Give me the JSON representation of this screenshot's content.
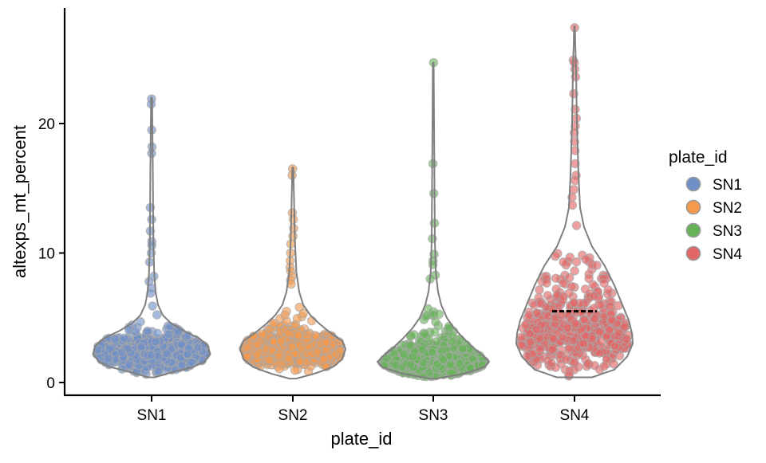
{
  "chart_data": {
    "type": "violin",
    "xlabel": "plate_id",
    "ylabel": "altexps_mt_percent",
    "categories": [
      "SN1",
      "SN2",
      "SN3",
      "SN4"
    ],
    "ylim": [
      -1,
      28
    ],
    "yticks": [
      0,
      10,
      20
    ],
    "grid": false,
    "legend": {
      "title": "plate_id",
      "position": "right",
      "entries": [
        "SN1",
        "SN2",
        "SN3",
        "SN4"
      ]
    },
    "colors": {
      "SN1": "#6f8fc8",
      "SN2": "#f39a4d",
      "SN3": "#66b357",
      "SN4": "#e36666"
    },
    "series": [
      {
        "name": "SN1",
        "min": 0.4,
        "max": 22.0,
        "median": 2.4,
        "mode": 2.2,
        "outliers": [
          21.9,
          21.5,
          19.5,
          18.2,
          17.7,
          13.5,
          12.6,
          11.7,
          10.9,
          10.6,
          10.0,
          9.3,
          8.2,
          7.8,
          7.3,
          6.9
        ]
      },
      {
        "name": "SN2",
        "min": 0.3,
        "max": 16.6,
        "median": 2.6,
        "mode": 2.6,
        "outliers": [
          16.5,
          16.0,
          13.1,
          12.6,
          11.9,
          11.3,
          10.7,
          10.0,
          9.4,
          8.9,
          8.6,
          8.2,
          7.9,
          7.6
        ]
      },
      {
        "name": "SN3",
        "min": 0.3,
        "max": 24.7,
        "median": 2.1,
        "mode": 1.6,
        "outliers": [
          24.7,
          16.9,
          14.6,
          12.3,
          11.1,
          9.9,
          9.4,
          9.1,
          8.3,
          8.0
        ]
      },
      {
        "name": "SN4",
        "min": 0.4,
        "max": 27.5,
        "median": 5.5,
        "mode": 3.5,
        "outliers": [
          27.4,
          24.9,
          24.7,
          24.2,
          23.6,
          22.3,
          21.1,
          20.4,
          19.8,
          19.3,
          18.6,
          17.9,
          16.9,
          16.0,
          15.6,
          14.9,
          14.3,
          13.7
        ]
      }
    ]
  }
}
